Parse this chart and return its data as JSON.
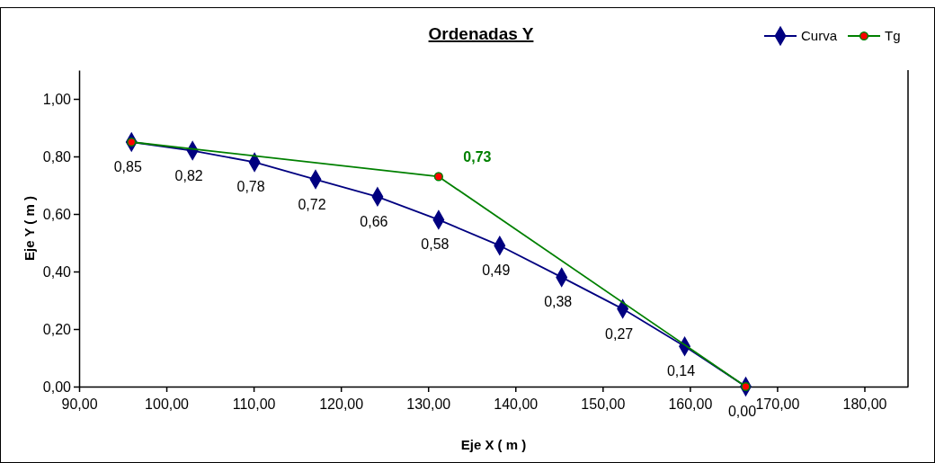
{
  "chart_data": {
    "type": "line",
    "title": "Ordenadas Y",
    "xlabel": "Eje  X ( m )",
    "ylabel": "Eje Y ( m )",
    "xlim": [
      90,
      185
    ],
    "xticks": [
      {
        "value": 90,
        "label": "90,00"
      },
      {
        "value": 100,
        "label": "100,00"
      },
      {
        "value": 110,
        "label": "110,00"
      },
      {
        "value": 120,
        "label": "120,00"
      },
      {
        "value": 130,
        "label": "130,00"
      },
      {
        "value": 140,
        "label": "140,00"
      },
      {
        "value": 150,
        "label": "150,00"
      },
      {
        "value": 160,
        "label": "160,00"
      },
      {
        "value": 170,
        "label": "170,00"
      },
      {
        "value": 180,
        "label": "180,00"
      }
    ],
    "ylim": [
      0,
      1.1
    ],
    "yticks": [
      {
        "value": 0,
        "label": "0,00"
      },
      {
        "value": 0.2,
        "label": "0,20"
      },
      {
        "value": 0.4,
        "label": "0,40"
      },
      {
        "value": 0.6,
        "label": "0,60"
      },
      {
        "value": 0.8,
        "label": "0,80"
      },
      {
        "value": 1,
        "label": "1,00"
      }
    ],
    "grid": false,
    "legend": "top right",
    "line_style": "solid",
    "series": [
      {
        "name": "Curva",
        "color": "#000080",
        "marker": "diamond",
        "x": [
          96.0,
          103.0,
          110.1,
          117.1,
          124.2,
          131.2,
          138.2,
          145.3,
          152.3,
          159.4,
          166.4
        ],
        "values": [
          0.85,
          0.82,
          0.78,
          0.72,
          0.66,
          0.58,
          0.49,
          0.38,
          0.27,
          0.14,
          0.0
        ],
        "value_labels": [
          "0,85",
          "0,82",
          "0,78",
          "0,72",
          "0,66",
          "0,58",
          "0,49",
          "0,38",
          "0,27",
          "0,14",
          "0,00"
        ]
      },
      {
        "name": "Tg",
        "color": "#008000",
        "marker": "circle",
        "x": [
          96.0,
          131.2,
          166.4
        ],
        "values": [
          0.85,
          0.73,
          0.0
        ],
        "value_labels": [
          null,
          "0,73",
          null
        ]
      }
    ]
  }
}
